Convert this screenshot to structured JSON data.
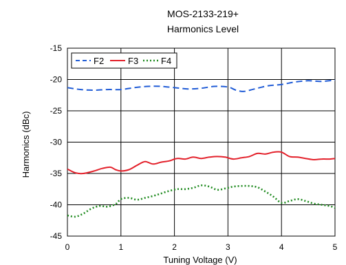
{
  "chart_data": {
    "type": "line",
    "title": "MOS-2133-219+",
    "subtitle": "Harmonics Level",
    "xlabel": "Tuning Voltage (V)",
    "ylabel": "Harmonics (dBc)",
    "xlim": [
      0,
      5
    ],
    "ylim": [
      -45,
      -15
    ],
    "xticks": [
      0,
      1,
      2,
      3,
      4,
      5
    ],
    "yticks": [
      -15,
      -20,
      -25,
      -30,
      -35,
      -40,
      -45
    ],
    "grid": true,
    "legend_position": "top-left",
    "series": [
      {
        "name": "F2",
        "color": "#1f5bd6",
        "dash": "dashed",
        "x": [
          0,
          0.25,
          0.5,
          0.75,
          1,
          1.25,
          1.5,
          1.75,
          2,
          2.25,
          2.5,
          2.75,
          3,
          3.15,
          3.3,
          3.5,
          3.75,
          4,
          4.25,
          4.5,
          4.75,
          5
        ],
        "y": [
          -21.3,
          -21.6,
          -21.7,
          -21.6,
          -21.6,
          -21.3,
          -21.1,
          -21.1,
          -21.3,
          -21.5,
          -21.4,
          -21.1,
          -21.2,
          -21.7,
          -21.9,
          -21.5,
          -21.0,
          -20.8,
          -20.4,
          -20.2,
          -20.3,
          -20.1
        ]
      },
      {
        "name": "F3",
        "color": "#e3202a",
        "dash": "solid",
        "x": [
          0,
          0.15,
          0.3,
          0.5,
          0.65,
          0.8,
          0.9,
          1,
          1.15,
          1.3,
          1.45,
          1.6,
          1.75,
          1.9,
          2.05,
          2.2,
          2.35,
          2.5,
          2.65,
          2.8,
          2.95,
          3.1,
          3.25,
          3.4,
          3.55,
          3.7,
          3.85,
          4,
          4.15,
          4.3,
          4.45,
          4.6,
          4.75,
          4.9,
          5
        ],
        "y": [
          -34.3,
          -34.9,
          -35.0,
          -34.6,
          -34.2,
          -34.0,
          -34.4,
          -34.6,
          -34.4,
          -33.7,
          -33.1,
          -33.5,
          -33.2,
          -33.0,
          -32.6,
          -32.7,
          -32.4,
          -32.6,
          -32.4,
          -32.3,
          -32.4,
          -32.7,
          -32.5,
          -32.3,
          -31.8,
          -31.9,
          -31.6,
          -31.6,
          -32.3,
          -32.4,
          -32.6,
          -32.8,
          -32.7,
          -32.7,
          -32.6
        ]
      },
      {
        "name": "F4",
        "color": "#1e8a1e",
        "dash": "dotted",
        "x": [
          0,
          0.15,
          0.3,
          0.45,
          0.6,
          0.75,
          0.9,
          1.0,
          1.15,
          1.3,
          1.45,
          1.6,
          1.75,
          1.9,
          2.05,
          2.2,
          2.35,
          2.5,
          2.65,
          2.8,
          2.95,
          3.1,
          3.25,
          3.4,
          3.55,
          3.7,
          3.85,
          4.0,
          4.15,
          4.3,
          4.45,
          4.6,
          4.75,
          4.9,
          5
        ],
        "y": [
          -41.7,
          -41.9,
          -41.4,
          -40.6,
          -40.2,
          -40.3,
          -39.9,
          -39.1,
          -38.9,
          -39.2,
          -38.9,
          -38.6,
          -38.2,
          -37.8,
          -37.5,
          -37.5,
          -37.3,
          -36.9,
          -37.1,
          -37.6,
          -37.4,
          -37.1,
          -37.0,
          -37.0,
          -37.2,
          -37.9,
          -38.7,
          -39.7,
          -39.4,
          -39.1,
          -39.4,
          -39.8,
          -40.0,
          -40.2,
          -40.5
        ]
      }
    ]
  }
}
